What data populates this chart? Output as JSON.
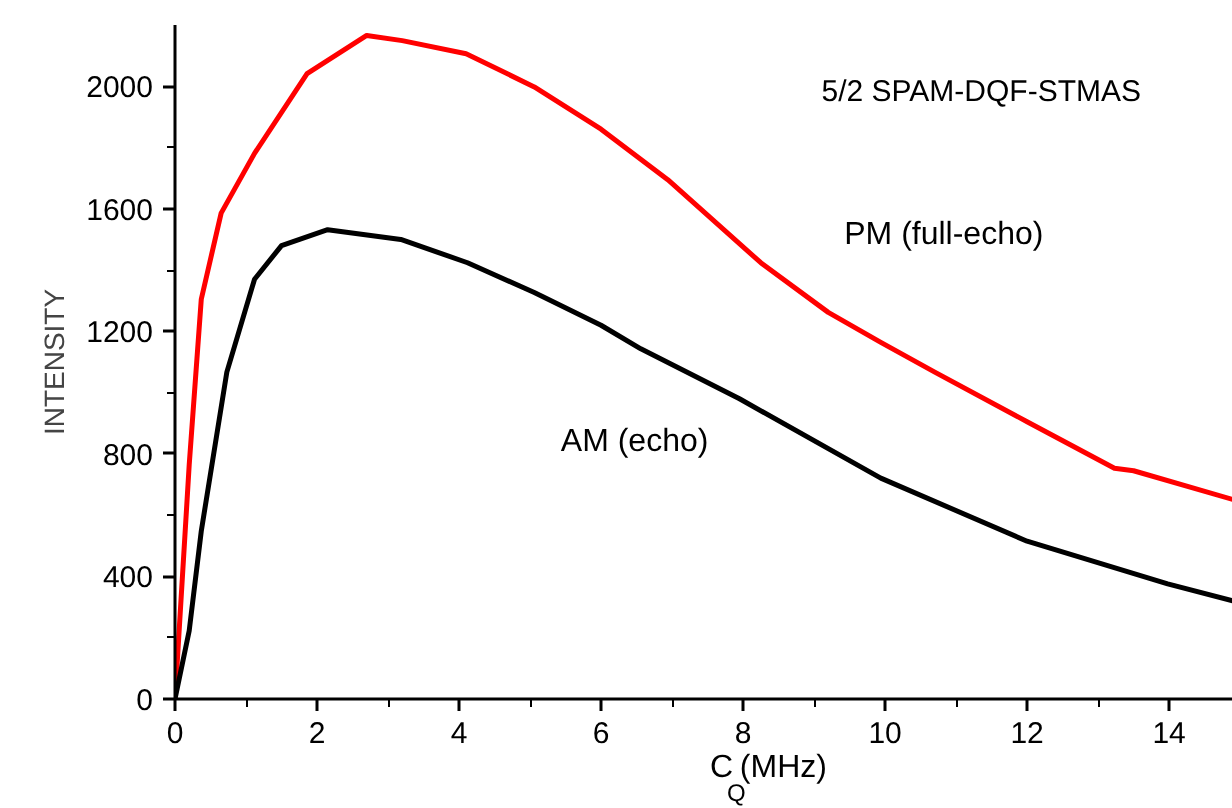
{
  "chart_data": {
    "type": "line",
    "title": "5/2 SPAM-DQF-STMAS",
    "xlabel": "C$_{Q}$(MHz)",
    "ylabel": "INTENSITY",
    "xlim": [
      0,
      14.9
    ],
    "ylim": [
      0,
      2200
    ],
    "xticks": [
      0,
      2,
      4,
      6,
      8,
      10,
      12,
      14
    ],
    "yticks": [
      0,
      400,
      800,
      1200,
      1600,
      2000
    ],
    "grid": false,
    "marker": "none",
    "line_style": "solid",
    "series": [
      {
        "name": "PM (full-echo)",
        "color": "#ff0000",
        "x": [
          0,
          0.2,
          0.37,
          0.65,
          1.12,
          1.86,
          2.7,
          3.2,
          4.1,
          5.06,
          6.0,
          6.94,
          8.25,
          9.2,
          9.94,
          10.7,
          12.0,
          13.23,
          13.5,
          14.9
        ],
        "values": [
          0,
          764,
          1305,
          1586,
          1781,
          2041,
          2166,
          2149,
          2106,
          1998,
          1860,
          1695,
          1424,
          1262,
          1164,
          1067,
          905,
          753,
          745,
          651
        ]
      },
      {
        "name": "AM (echo)",
        "color": "#000000",
        "x": [
          0,
          0.2,
          0.37,
          0.73,
          1.12,
          1.5,
          2.15,
          3.18,
          4.12,
          5.06,
          6.0,
          6.56,
          7.95,
          9.94,
          12.0,
          13.98,
          14.9
        ],
        "values": [
          0,
          223,
          548,
          1067,
          1370,
          1480,
          1532,
          1500,
          1424,
          1327,
          1220,
          1143,
          980,
          721,
          515,
          376,
          320
        ]
      }
    ]
  }
}
